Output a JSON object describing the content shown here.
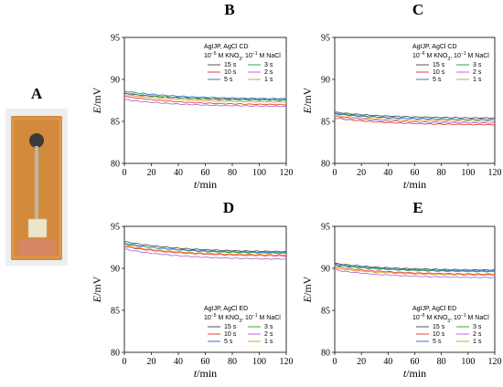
{
  "panel_a": {
    "letter": "A",
    "photo": {
      "board_color": "#d38a3c",
      "pad_color": "#3a3a3a",
      "contact_color": "#ece6c8",
      "frame_color": "#efefef"
    }
  },
  "series_styles": [
    {
      "label": "15 s",
      "color": "#555555"
    },
    {
      "label": "3 s",
      "color": "#2ea84a"
    },
    {
      "label": "10 s",
      "color": "#e8413c"
    },
    {
      "label": "2 s",
      "color": "#b06fd8"
    },
    {
      "label": "5 s",
      "color": "#3b74c4"
    },
    {
      "label": "1 s",
      "color": "#e49a2c"
    }
  ],
  "chart_data": [
    {
      "id": "B",
      "type": "line",
      "letter": "B",
      "title_line1": "AgIJP, AgCl CD",
      "title_line2_pre": "10",
      "title_line2_exp": "−5",
      "title_line2_mid": " M KNO",
      "title_line2_sub": "3",
      "title_line2_mid2": ", 10",
      "title_line2_exp2": "−1",
      "title_line2_post": " M NaCl",
      "xlabel_italic": "t",
      "xlabel_rest": "/min",
      "ylabel_italic": "E",
      "ylabel_rest": "/mV",
      "xlim": [
        0,
        120
      ],
      "ylim": [
        80,
        95
      ],
      "xticks": [
        0,
        20,
        40,
        60,
        80,
        100,
        120
      ],
      "yticks": [
        80,
        85,
        90,
        95
      ],
      "legend_position": "top-right",
      "series": [
        {
          "name": "15 s",
          "start": 88.3,
          "end": 87.6
        },
        {
          "name": "3 s",
          "start": 88.4,
          "end": 87.5
        },
        {
          "name": "10 s",
          "start": 88.0,
          "end": 87.0
        },
        {
          "name": "2 s",
          "start": 87.6,
          "end": 86.8
        },
        {
          "name": "5 s",
          "start": 88.6,
          "end": 87.7
        },
        {
          "name": "1 s",
          "start": 88.2,
          "end": 87.3
        }
      ]
    },
    {
      "id": "C",
      "type": "line",
      "letter": "C",
      "title_line1": "AgIJP, AgCl CD",
      "title_line2_pre": "10",
      "title_line2_exp": "−6",
      "title_line2_mid": " M KNO",
      "title_line2_sub": "3",
      "title_line2_mid2": ", 10",
      "title_line2_exp2": "−1",
      "title_line2_post": " M NaCl",
      "xlabel_italic": "t",
      "xlabel_rest": "/min",
      "ylabel_italic": "E",
      "ylabel_rest": "/mV",
      "xlim": [
        0,
        120
      ],
      "ylim": [
        80,
        95
      ],
      "xticks": [
        0,
        20,
        40,
        60,
        80,
        100,
        120
      ],
      "yticks": [
        80,
        85,
        90,
        95
      ],
      "legend_position": "top-right",
      "series": [
        {
          "name": "15 s",
          "start": 86.1,
          "end": 85.4
        },
        {
          "name": "3 s",
          "start": 86.0,
          "end": 85.2
        },
        {
          "name": "10 s",
          "start": 85.4,
          "end": 84.6
        },
        {
          "name": "2 s",
          "start": 85.6,
          "end": 84.8
        },
        {
          "name": "5 s",
          "start": 85.9,
          "end": 85.2
        },
        {
          "name": "1 s",
          "start": 85.7,
          "end": 85.0
        }
      ]
    },
    {
      "id": "D",
      "type": "line",
      "letter": "D",
      "title_line1": "AgIJP, AgCl ED",
      "title_line2_pre": "10",
      "title_line2_exp": "−5",
      "title_line2_mid": " M KNO",
      "title_line2_sub": "3",
      "title_line2_mid2": ", 10",
      "title_line2_exp2": "−1",
      "title_line2_post": " M NaCl",
      "xlabel_italic": "t",
      "xlabel_rest": "/min",
      "ylabel_italic": "E",
      "ylabel_rest": "/mV",
      "xlim": [
        0,
        120
      ],
      "ylim": [
        80,
        95
      ],
      "xticks": [
        0,
        20,
        40,
        60,
        80,
        100,
        120
      ],
      "yticks": [
        80,
        85,
        90,
        95
      ],
      "legend_position": "bottom-right",
      "series": [
        {
          "name": "15 s",
          "start": 93.2,
          "end": 92.0
        },
        {
          "name": "3 s",
          "start": 93.0,
          "end": 91.8
        },
        {
          "name": "10 s",
          "start": 92.6,
          "end": 91.5
        },
        {
          "name": "2 s",
          "start": 92.3,
          "end": 91.1
        },
        {
          "name": "5 s",
          "start": 92.9,
          "end": 91.9
        },
        {
          "name": "1 s",
          "start": 92.7,
          "end": 91.6
        }
      ]
    },
    {
      "id": "E",
      "type": "line",
      "letter": "E",
      "title_line1": "AgIJP, AgCl ED",
      "title_line2_pre": "10",
      "title_line2_exp": "−6",
      "title_line2_mid": " M KNO",
      "title_line2_sub": "3",
      "title_line2_mid2": ", 10",
      "title_line2_exp2": "−1",
      "title_line2_post": " M NaCl",
      "xlabel_italic": "t",
      "xlabel_rest": "/min",
      "ylabel_italic": "E",
      "ylabel_rest": "/mV",
      "xlim": [
        0,
        120
      ],
      "ylim": [
        80,
        95
      ],
      "xticks": [
        0,
        20,
        40,
        60,
        80,
        100,
        120
      ],
      "yticks": [
        80,
        85,
        90,
        95
      ],
      "legend_position": "bottom-right",
      "series": [
        {
          "name": "15 s",
          "start": 90.6,
          "end": 89.8
        },
        {
          "name": "3 s",
          "start": 90.4,
          "end": 89.6
        },
        {
          "name": "10 s",
          "start": 90.2,
          "end": 89.3
        },
        {
          "name": "2 s",
          "start": 89.8,
          "end": 88.9
        },
        {
          "name": "5 s",
          "start": 90.5,
          "end": 89.7
        },
        {
          "name": "1 s",
          "start": 90.0,
          "end": 89.2
        }
      ]
    }
  ]
}
